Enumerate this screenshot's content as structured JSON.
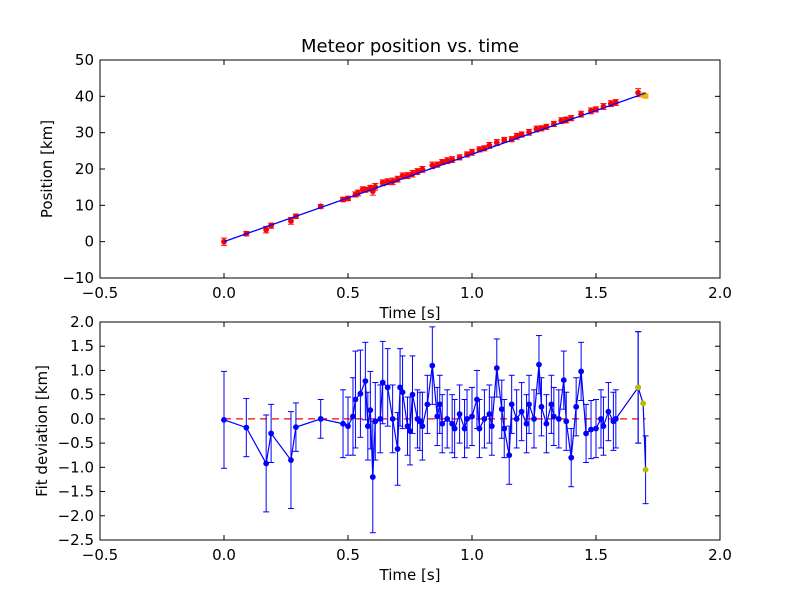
{
  "chart_data": [
    {
      "type": "scatter",
      "title": "Meteor position vs. time",
      "xlabel": "Time [s]",
      "ylabel": "Position [km]",
      "xlim": [
        -0.5,
        2.0
      ],
      "ylim": [
        -10,
        50
      ],
      "xticks": [
        -0.5,
        0.0,
        0.5,
        1.0,
        1.5,
        2.0
      ],
      "yticks": [
        -10,
        0,
        10,
        20,
        30,
        40,
        50
      ],
      "xtick_labels": [
        "−0.5",
        "0.0",
        "0.5",
        "1.0",
        "1.5",
        "2.0"
      ],
      "ytick_labels": [
        "−10",
        "0",
        "10",
        "20",
        "30",
        "40",
        "50"
      ],
      "grid": false,
      "series": [
        {
          "kind": "errorbar",
          "color": "#ff0000",
          "x": [
            0.0,
            0.09,
            0.17,
            0.19,
            0.27,
            0.29,
            0.39,
            0.48,
            0.5,
            0.53,
            0.54,
            0.56,
            0.57,
            0.59,
            0.6,
            0.61,
            0.64,
            0.66,
            0.68,
            0.7,
            0.72,
            0.74,
            0.76,
            0.78,
            0.8,
            0.84,
            0.86,
            0.88,
            0.9,
            0.92,
            0.95,
            0.98,
            1.0,
            1.03,
            1.05,
            1.07,
            1.1,
            1.13,
            1.16,
            1.18,
            1.2,
            1.23,
            1.26,
            1.28,
            1.3,
            1.33,
            1.36,
            1.38,
            1.4,
            1.44,
            1.48,
            1.5,
            1.53,
            1.56,
            1.58,
            1.67
          ],
          "y": [
            0.0,
            2.2,
            3.3,
            4.4,
            5.7,
            7.0,
            9.7,
            11.6,
            11.9,
            13.0,
            13.4,
            14.4,
            14.3,
            14.7,
            13.9,
            15.1,
            16.2,
            16.5,
            16.6,
            17.2,
            18.1,
            18.2,
            18.7,
            19.3,
            19.9,
            21.0,
            21.2,
            21.9,
            22.3,
            22.6,
            23.2,
            24.0,
            24.6,
            25.4,
            25.7,
            26.5,
            27.3,
            28.0,
            28.2,
            29.0,
            29.5,
            30.1,
            31.0,
            31.2,
            31.6,
            32.4,
            33.3,
            33.5,
            34.0,
            35.1,
            36.0,
            36.4,
            37.2,
            38.0,
            38.3,
            41.0
          ],
          "yerr": [
            1.0,
            0.6,
            0.9,
            0.7,
            0.9,
            0.6,
            0.5,
            0.6,
            0.6,
            0.7,
            0.8,
            0.7,
            0.7,
            0.8,
            1.1,
            0.9,
            0.8,
            0.8,
            0.9,
            0.8,
            0.8,
            0.8,
            0.9,
            0.8,
            0.8,
            0.9,
            0.7,
            0.7,
            0.8,
            0.8,
            0.7,
            0.7,
            0.8,
            0.7,
            0.7,
            0.8,
            0.8,
            0.7,
            0.7,
            0.8,
            0.7,
            0.8,
            0.8,
            0.7,
            0.7,
            0.7,
            0.8,
            0.8,
            0.7,
            0.8,
            0.8,
            0.7,
            0.8,
            0.8,
            0.8,
            1.1
          ]
        },
        {
          "kind": "errorbar",
          "color": "#ffaa00",
          "x": [
            1.69,
            1.7
          ],
          "y": [
            40.4,
            40.1
          ],
          "yerr": [
            0.6,
            0.6
          ]
        },
        {
          "kind": "line",
          "color": "#0000ff",
          "x": [
            0.0,
            1.7
          ],
          "y": [
            0.0,
            40.9
          ]
        }
      ]
    },
    {
      "type": "line",
      "title": "",
      "xlabel": "Time [s]",
      "ylabel": "Fit deviation [km]",
      "xlim": [
        -0.5,
        2.0
      ],
      "ylim": [
        -2.5,
        2.0
      ],
      "xticks": [
        -0.5,
        0.0,
        0.5,
        1.0,
        1.5,
        2.0
      ],
      "yticks": [
        -2.5,
        -2.0,
        -1.5,
        -1.0,
        -0.5,
        0.0,
        0.5,
        1.0,
        1.5,
        2.0
      ],
      "xtick_labels": [
        "−0.5",
        "0.0",
        "0.5",
        "1.0",
        "1.5",
        "2.0"
      ],
      "ytick_labels": [
        "−2.5",
        "−2.0",
        "−1.5",
        "−1.0",
        "−0.5",
        "0.0",
        "0.5",
        "1.0",
        "1.5",
        "2.0"
      ],
      "grid": false,
      "series": [
        {
          "kind": "zero-line",
          "color": "#ff0000",
          "x": [
            0.0,
            1.7
          ],
          "y": [
            0.0,
            0.0
          ]
        },
        {
          "kind": "line-errorbar",
          "color": "#0000ff",
          "x": [
            0.0,
            0.09,
            0.17,
            0.19,
            0.27,
            0.29,
            0.39,
            0.48,
            0.5,
            0.52,
            0.53,
            0.55,
            0.57,
            0.58,
            0.59,
            0.6,
            0.61,
            0.63,
            0.64,
            0.66,
            0.68,
            0.7,
            0.71,
            0.72,
            0.74,
            0.75,
            0.76,
            0.78,
            0.79,
            0.8,
            0.82,
            0.84,
            0.86,
            0.87,
            0.88,
            0.9,
            0.92,
            0.93,
            0.95,
            0.97,
            0.98,
            1.0,
            1.02,
            1.03,
            1.05,
            1.07,
            1.08,
            1.1,
            1.12,
            1.13,
            1.15,
            1.16,
            1.18,
            1.2,
            1.22,
            1.23,
            1.25,
            1.27,
            1.28,
            1.3,
            1.32,
            1.33,
            1.35,
            1.37,
            1.38,
            1.4,
            1.42,
            1.44,
            1.46,
            1.48,
            1.5,
            1.52,
            1.53,
            1.55,
            1.57,
            1.58,
            1.67
          ],
          "y": [
            -0.02,
            -0.18,
            -0.92,
            -0.3,
            -0.85,
            -0.17,
            0.0,
            -0.1,
            -0.15,
            0.05,
            0.4,
            0.52,
            0.78,
            -0.15,
            0.18,
            -1.2,
            -0.05,
            0.0,
            0.75,
            0.65,
            0.0,
            -0.62,
            0.65,
            0.55,
            -0.15,
            -0.25,
            0.5,
            0.0,
            -0.05,
            -0.15,
            0.3,
            1.1,
            0.05,
            0.3,
            -0.1,
            0.0,
            -0.1,
            -0.2,
            0.1,
            -0.2,
            0.0,
            0.05,
            0.4,
            -0.2,
            0.0,
            0.1,
            -0.15,
            1.05,
            0.2,
            -0.2,
            -0.75,
            0.3,
            0.0,
            0.15,
            -0.1,
            0.3,
            0.0,
            1.12,
            0.25,
            -0.1,
            0.3,
            0.05,
            0.0,
            0.8,
            -0.05,
            -0.8,
            0.25,
            0.98,
            -0.3,
            -0.22,
            -0.2,
            0.0,
            -0.15,
            0.15,
            -0.05,
            0.0,
            0.65
          ],
          "yerr": [
            1.0,
            0.6,
            1.0,
            0.6,
            1.0,
            0.5,
            0.4,
            0.7,
            0.6,
            0.8,
            1.0,
            0.9,
            0.8,
            0.7,
            0.8,
            1.15,
            0.8,
            0.7,
            0.85,
            0.8,
            0.7,
            0.75,
            0.8,
            0.75,
            0.6,
            0.7,
            0.8,
            0.6,
            0.6,
            0.7,
            0.6,
            0.8,
            0.6,
            0.6,
            0.6,
            0.6,
            0.6,
            0.6,
            0.6,
            0.6,
            0.6,
            0.6,
            0.6,
            0.6,
            0.6,
            0.6,
            0.6,
            0.6,
            0.6,
            0.6,
            0.6,
            0.6,
            0.6,
            0.6,
            0.6,
            0.6,
            0.6,
            0.6,
            0.6,
            0.6,
            0.6,
            0.6,
            0.6,
            0.6,
            0.6,
            0.6,
            0.6,
            0.6,
            0.6,
            0.6,
            0.6,
            0.6,
            0.6,
            0.6,
            0.6,
            0.6,
            1.15
          ]
        },
        {
          "kind": "line-errorbar",
          "color": "#0000ff",
          "marker_color": "#bbbb00",
          "x": [
            1.67,
            1.69,
            1.7
          ],
          "y": [
            0.65,
            0.32,
            -1.05
          ],
          "yerr": [
            1.15,
            0.0,
            0.7
          ]
        }
      ]
    }
  ]
}
